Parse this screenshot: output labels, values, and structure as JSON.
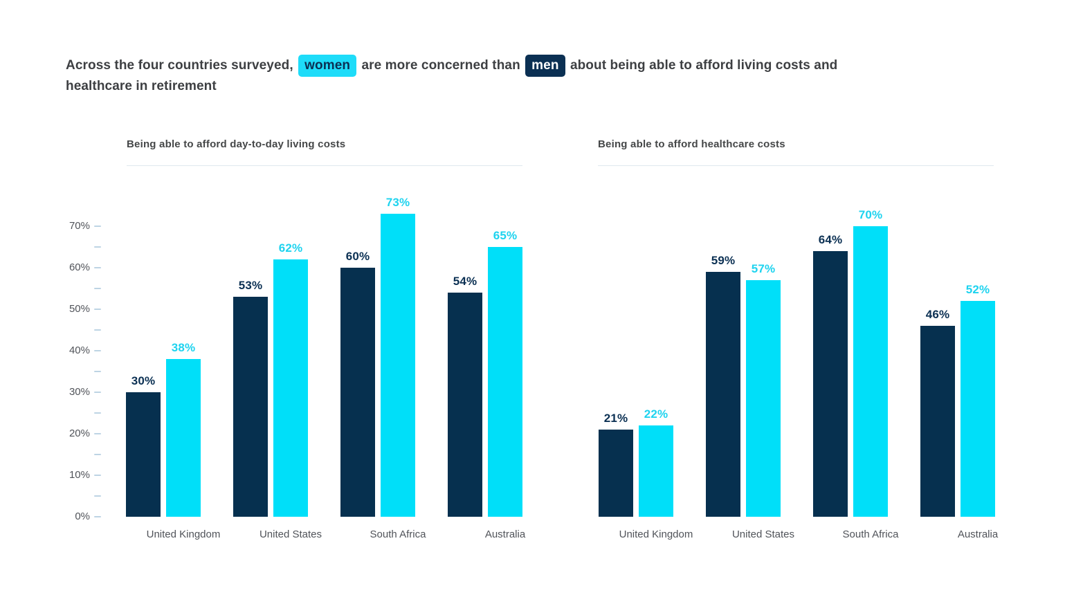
{
  "headline": {
    "part1": "Across the four countries surveyed,",
    "women_chip": "women",
    "part2": "are more concerned than",
    "men_chip": "men",
    "part3": "about being able to afford living costs and",
    "part4": "healthcare in retirement"
  },
  "colors": {
    "men": "#06304f",
    "women": "#00dff9",
    "men_label": "#0b3053",
    "women_label": "#1ed3ef",
    "axis_text": "#505359",
    "tick": "#bdd4e4",
    "rule": "#dfe7ee",
    "headline_text": "#3d3f42",
    "chart_title_text": "#454748",
    "chip_women_bg": "#1edcf9",
    "chip_women_text": "#0b3053",
    "chip_men_bg": "#0b3053",
    "chip_men_text": "#ffffff"
  },
  "chart_data": [
    {
      "type": "bar",
      "title": "Being able to afford day-to-day living costs",
      "categories": [
        "United Kingdom",
        "United States",
        "South Africa",
        "Australia"
      ],
      "series": [
        {
          "name": "men",
          "values": [
            30,
            53,
            60,
            54
          ]
        },
        {
          "name": "women",
          "values": [
            38,
            62,
            73,
            65
          ]
        }
      ],
      "value_label_format": "percent",
      "xlabel": "",
      "ylabel": "",
      "ylim": [
        0,
        75
      ],
      "ytick_labels": [
        "0%",
        "10%",
        "20%",
        "30%",
        "40%",
        "50%",
        "60%",
        "70%"
      ],
      "minor_tick_step": 5,
      "y_axis_visible": true,
      "grid": false,
      "legend_position": "none (headline chips act as legend)"
    },
    {
      "type": "bar",
      "title": "Being able to afford healthcare costs",
      "categories": [
        "United Kingdom",
        "United States",
        "South Africa",
        "Australia"
      ],
      "series": [
        {
          "name": "men",
          "values": [
            21,
            59,
            64,
            46
          ]
        },
        {
          "name": "women",
          "values": [
            22,
            57,
            70,
            52
          ]
        }
      ],
      "value_label_format": "percent",
      "xlabel": "",
      "ylabel": "",
      "ylim": [
        0,
        75
      ],
      "ytick_labels": [],
      "minor_tick_step": 5,
      "y_axis_visible": false,
      "grid": false,
      "legend_position": "none (headline chips act as legend)"
    }
  ]
}
